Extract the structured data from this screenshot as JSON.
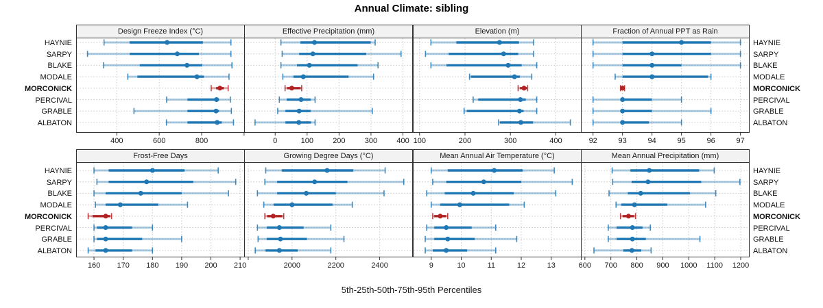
{
  "title": "Annual Climate: sibling",
  "caption": "5th-25th-50th-75th-95th Percentiles",
  "percentile_labels": [
    "5th",
    "25th",
    "50th",
    "75th",
    "95th"
  ],
  "sites": [
    "HAYNIE",
    "SARPY",
    "BLAKE",
    "MODALE",
    "MORCONICK",
    "PERCIVAL",
    "GRABLE",
    "ALBATON"
  ],
  "highlight_site": "MORCONICK",
  "colors": {
    "series_blue": "#1f77b4",
    "highlight_red": "#b22222",
    "header_bg": "#f2f2f2",
    "panel_border": "#333333",
    "grid": "#c9c9c9",
    "text": "#1a1a1a"
  },
  "chart_data": {
    "type": "dot-interval percentile trellis (5th/25th/50th/75th/95th per site)",
    "legend_position": "none",
    "grid": "dashed vertical at ticks, dashed horizontal at each site row",
    "panels": [
      {
        "title": "Design Freeze Index (°C)",
        "row": 0,
        "xlim": [
          210,
          1002
        ],
        "ticks": [
          {
            "v": 400,
            "label": "400"
          },
          {
            "v": 600,
            "label": "600"
          },
          {
            "v": 800,
            "label": "800"
          },
          {
            "v": 1000,
            "label": ""
          }
        ],
        "series": {
          "HAYNIE": [
            340,
            460,
            637,
            806,
            938
          ],
          "SARPY": [
            262,
            461,
            685,
            787,
            938
          ],
          "BLAKE": [
            338,
            508,
            731,
            803,
            943
          ],
          "MODALE": [
            452,
            497,
            778,
            811,
            929
          ],
          "MORCONICK": [
            845,
            868,
            886,
            905,
            925
          ],
          "PERCIVAL": [
            635,
            733,
            870,
            882,
            935
          ],
          "GRABLE": [
            481,
            733,
            868,
            882,
            940
          ],
          "ALBATON": [
            634,
            733,
            873,
            895,
            950
          ]
        }
      },
      {
        "title": "Effective Precipitation (mm)",
        "row": 0,
        "xlim": [
          -96,
          430
        ],
        "ticks": [
          {
            "v": 0,
            "label": "0"
          },
          {
            "v": 100,
            "label": "100"
          },
          {
            "v": 200,
            "label": "200"
          },
          {
            "v": 300,
            "label": "300"
          },
          {
            "v": 400,
            "label": "400"
          }
        ],
        "series": {
          "HAYNIE": [
            18,
            79,
            123,
            299,
            313
          ],
          "SARPY": [
            22,
            75,
            118,
            285,
            394
          ],
          "BLAKE": [
            18,
            68,
            107,
            258,
            322
          ],
          "MODALE": [
            24,
            57,
            88,
            230,
            308
          ],
          "MORCONICK": [
            31,
            37,
            52,
            80,
            83
          ],
          "PERCIVAL": [
            13,
            36,
            81,
            111,
            125
          ],
          "GRABLE": [
            8,
            32,
            75,
            111,
            304
          ],
          "ALBATON": [
            -63,
            32,
            74,
            112,
            125
          ]
        }
      },
      {
        "title": "Elevation (m)",
        "row": 0,
        "xlim": [
          86,
          456
        ],
        "ticks": [
          {
            "v": 100,
            "label": "100"
          },
          {
            "v": 200,
            "label": "200"
          },
          {
            "v": 300,
            "label": "300"
          },
          {
            "v": 400,
            "label": "400"
          }
        ],
        "series": {
          "HAYNIE": [
            125,
            181,
            276,
            319,
            351
          ],
          "SARPY": [
            113,
            164,
            285,
            317,
            351
          ],
          "BLAKE": [
            125,
            159,
            295,
            325,
            358
          ],
          "MODALE": [
            210,
            213,
            309,
            321,
            347
          ],
          "MORCONICK": [
            317,
            321,
            330,
            336,
            338
          ],
          "PERCIVAL": [
            218,
            229,
            322,
            334,
            358
          ],
          "GRABLE": [
            198,
            204,
            320,
            329,
            358
          ],
          "ALBATON": [
            274,
            277,
            323,
            350,
            432
          ]
        }
      },
      {
        "title": "Fraction of Annual PPT as Rain",
        "row": 0,
        "xlim": [
          91.6,
          97.3
        ],
        "ticks": [
          {
            "v": 92,
            "label": "92"
          },
          {
            "v": 93,
            "label": "93"
          },
          {
            "v": 94,
            "label": "94"
          },
          {
            "v": 95,
            "label": "95"
          },
          {
            "v": 96,
            "label": "96"
          },
          {
            "v": 97,
            "label": "97"
          }
        ],
        "series": {
          "HAYNIE": [
            92,
            93,
            95,
            96,
            97
          ],
          "SARPY": [
            92,
            93,
            94,
            96,
            97
          ],
          "BLAKE": [
            92,
            93,
            94,
            95,
            97
          ],
          "MODALE": [
            92.75,
            93,
            94,
            95.9,
            96
          ],
          "MORCONICK": [
            92.93,
            92.97,
            93,
            93.03,
            93.07
          ],
          "PERCIVAL": [
            92,
            93,
            93,
            94,
            95
          ],
          "GRABLE": [
            92,
            93,
            93,
            94,
            96
          ],
          "ALBATON": [
            92,
            93,
            93,
            93.9,
            95
          ]
        }
      },
      {
        "title": "Frost-Free Days",
        "row": 1,
        "xlim": [
          154,
          211.5
        ],
        "ticks": [
          {
            "v": 160,
            "label": "160"
          },
          {
            "v": 170,
            "label": "170"
          },
          {
            "v": 180,
            "label": "180"
          },
          {
            "v": 190,
            "label": "190"
          },
          {
            "v": 200,
            "label": "200"
          },
          {
            "v": 210,
            "label": "210"
          }
        ],
        "series": {
          "HAYNIE": [
            160,
            165,
            180,
            191,
            202.5
          ],
          "SARPY": [
            161,
            165,
            178,
            194,
            208.5
          ],
          "BLAKE": [
            160,
            164,
            176,
            190,
            206
          ],
          "MODALE": [
            160.5,
            164,
            169,
            182,
            192
          ],
          "MORCONICK": [
            158,
            159.5,
            164,
            165.5,
            166
          ],
          "PERCIVAL": [
            160,
            161,
            164,
            173,
            180
          ],
          "GRABLE": [
            160,
            161,
            164,
            176.5,
            190
          ],
          "ALBATON": [
            158,
            160.5,
            164,
            173,
            180
          ]
        }
      },
      {
        "title": "Growing Degree Days (°C)",
        "row": 1,
        "xlim": [
          1783,
          2550
        ],
        "ticks": [
          {
            "v": 1800,
            "label": ""
          },
          {
            "v": 2000,
            "label": "2000"
          },
          {
            "v": 2200,
            "label": "2200"
          },
          {
            "v": 2400,
            "label": "2400"
          }
        ],
        "series": {
          "HAYNIE": [
            1880,
            1953,
            2160,
            2280,
            2425
          ],
          "SARPY": [
            1876,
            1932,
            2103,
            2253,
            2510
          ],
          "BLAKE": [
            1842,
            1932,
            2065,
            2200,
            2420
          ],
          "MODALE": [
            1871,
            1916,
            2000,
            2185,
            2275
          ],
          "MORCONICK": [
            1876,
            1886,
            1914,
            1956,
            1962
          ],
          "PERCIVAL": [
            1842,
            1884,
            1942,
            2053,
            2177
          ],
          "GRABLE": [
            1845,
            1884,
            1947,
            2068,
            2237
          ],
          "ALBATON": [
            1832,
            1879,
            1942,
            2026,
            2177
          ]
        }
      },
      {
        "title": "Mean Annual Air Temperature (°C)",
        "row": 1,
        "xlim": [
          8.4,
          14.0
        ],
        "ticks": [
          {
            "v": 9,
            "label": "9"
          },
          {
            "v": 10,
            "label": "10"
          },
          {
            "v": 11,
            "label": "11"
          },
          {
            "v": 12,
            "label": "12"
          },
          {
            "v": 13,
            "label": "13"
          },
          {
            "v": 14,
            "label": ""
          }
        ],
        "series": {
          "HAYNIE": [
            9.0,
            9.55,
            11.1,
            12.05,
            13.1
          ],
          "SARPY": [
            9.05,
            9.5,
            10.75,
            12.0,
            13.7
          ],
          "BLAKE": [
            8.85,
            9.45,
            10.4,
            11.75,
            13.15
          ],
          "MODALE": [
            9.0,
            9.3,
            9.95,
            11.6,
            12.1
          ],
          "MORCONICK": [
            9.05,
            9.1,
            9.3,
            9.5,
            9.55
          ],
          "PERCIVAL": [
            8.85,
            9.1,
            9.5,
            10.35,
            11.15
          ],
          "GRABLE": [
            8.8,
            9.1,
            9.55,
            10.45,
            11.85
          ],
          "ALBATON": [
            8.8,
            9.05,
            9.5,
            10.2,
            11.15
          ]
        }
      },
      {
        "title": "Mean Annual Precipitation (mm)",
        "row": 1,
        "xlim": [
          586,
          1233
        ],
        "ticks": [
          {
            "v": 600,
            "label": "600"
          },
          {
            "v": 700,
            "label": "700"
          },
          {
            "v": 800,
            "label": "800"
          },
          {
            "v": 900,
            "label": "900"
          },
          {
            "v": 1000,
            "label": "1000"
          },
          {
            "v": 1100,
            "label": "1100"
          },
          {
            "v": 1200,
            "label": "1200"
          }
        ],
        "series": {
          "HAYNIE": [
            705,
            775,
            848,
            1040,
            1098
          ],
          "SARPY": [
            707,
            780,
            843,
            1048,
            1197
          ],
          "BLAKE": [
            693,
            765,
            815,
            1005,
            1104
          ],
          "MODALE": [
            720,
            740,
            791,
            917,
            1065
          ],
          "MORCONICK": [
            737,
            745,
            768,
            790,
            795
          ],
          "PERCIVAL": [
            690,
            722,
            783,
            822,
            852
          ],
          "GRABLE": [
            690,
            722,
            783,
            835,
            1043
          ],
          "ALBATON": [
            635,
            748,
            781,
            817,
            855
          ]
        }
      }
    ]
  }
}
